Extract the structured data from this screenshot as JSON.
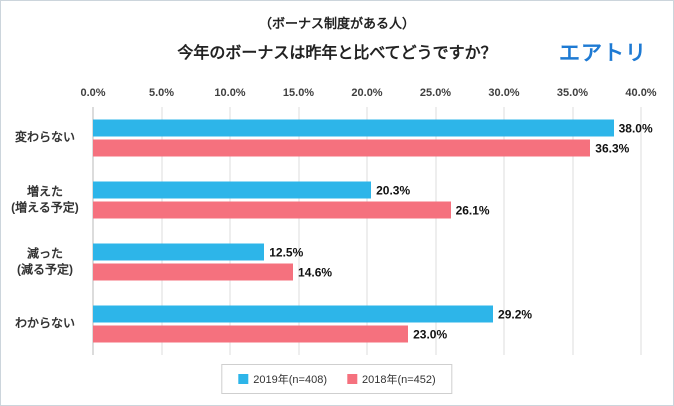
{
  "header": {
    "subtitle": "（ボーナス制度がある人）",
    "title": "今年のボーナスは昨年と比べてどうですか？",
    "logo": "エアトリ",
    "logo_color": "#1e7ad3"
  },
  "chart_data": {
    "type": "bar",
    "orientation": "horizontal",
    "title": "今年のボーナスは昨年と比べてどうですか？",
    "subtitle": "（ボーナス制度がある人）",
    "categories": [
      "変わらない",
      "増えた\n(増える予定)",
      "減った\n(減る予定)",
      "わからない"
    ],
    "series": [
      {
        "key": "2019",
        "name": "2019年(n=408)",
        "color": "#2db5e9",
        "values": [
          38.0,
          20.3,
          12.5,
          29.2
        ],
        "labels": [
          "38.0%",
          "20.3%",
          "12.5%",
          "29.2%"
        ]
      },
      {
        "key": "2018",
        "name": "2018年(n=452)",
        "color": "#f5717e",
        "values": [
          36.3,
          26.1,
          14.6,
          23.0
        ],
        "labels": [
          "36.3%",
          "26.1%",
          "14.6%",
          "23.0%"
        ]
      }
    ],
    "xlim": [
      0,
      40
    ],
    "xticks": [
      "0.0%",
      "5.0%",
      "10.0%",
      "15.0%",
      "20.0%",
      "25.0%",
      "30.0%",
      "35.0%",
      "40.0%"
    ],
    "grid": "vertical",
    "legend_position": "bottom"
  }
}
